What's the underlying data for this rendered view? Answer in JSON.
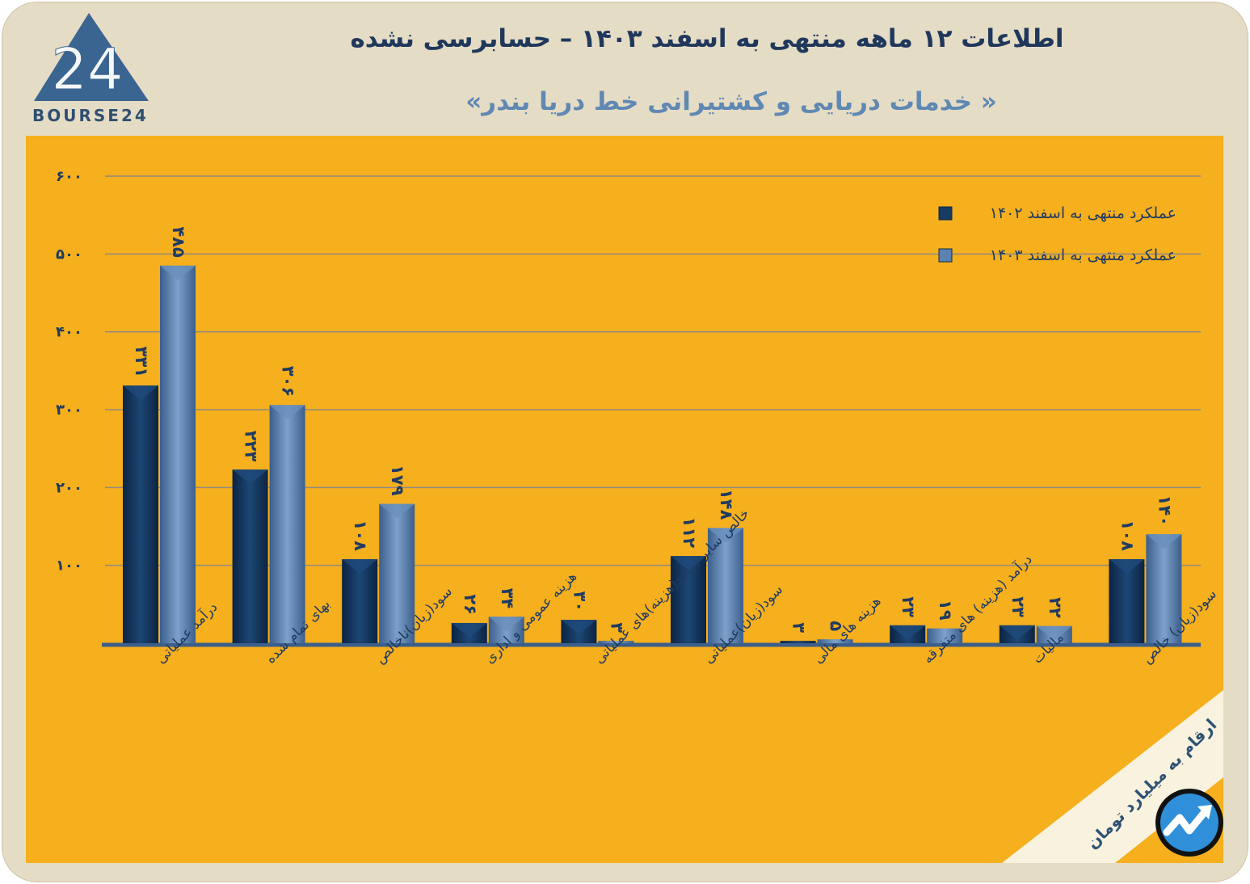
{
  "header": {
    "title": "اطلاعات ۱۲ ماهه منتهی به اسفند ۱۴۰۳ – حسابرسی نشده",
    "subtitle": "« خدمات دریایی و کشتیرانی خط دریا بندر»",
    "logo_text": "BOURSE24",
    "logo_number": "24"
  },
  "colors": {
    "frame": "#e5dcc5",
    "panel": "#f6af1d",
    "series_1402": "#173b63",
    "series_1403": "#5a82b2",
    "title": "#20385c",
    "subtitle": "#5f88b3",
    "gridline": "#8f8a80"
  },
  "badge_icon": "trend-arrow-icon",
  "note": "ارقام به میلیارد تومان",
  "chart_data": {
    "type": "bar",
    "categories": [
      "درآمد عملیاتی",
      "بهای تمام شده",
      "سود(زیان)ناخالص",
      "هزینه عمومی و اداری",
      "خالص سایر درامد(هزینه)های عملیاتی",
      "سود(زیان)عملیاتی",
      "هزینه های مالی",
      "درآمد (هزینه) های متفرقه",
      "مالیات",
      "سود(زیان) خالص"
    ],
    "series": [
      {
        "name": "عملکرد منتهی به اسفند ۱۴۰۲",
        "values": [
          331,
          223,
          108,
          26,
          30,
          112,
          3,
          23,
          23,
          108
        ],
        "labels": [
          "۳۳۱",
          "۲۲۳",
          "۱۰۸",
          "۲۶",
          "۳۰",
          "۱۱۲",
          "۳",
          "۲۳",
          "۲۳",
          "۱۰۸"
        ]
      },
      {
        "name": "عملکرد منتهی به اسفند ۱۴۰۳",
        "values": [
          485,
          306,
          179,
          34,
          3,
          148,
          5,
          19,
          22,
          140
        ],
        "labels": [
          "۴۸۵",
          "۳۰۶",
          "۱۷۹",
          "۳۴",
          "۳",
          "۱۴۸",
          "۵",
          "۱۹",
          "۲۲",
          "۱۴۰"
        ]
      }
    ],
    "yticks": [
      {
        "value": 100,
        "label": "۱۰۰"
      },
      {
        "value": 200,
        "label": "۲۰۰"
      },
      {
        "value": 300,
        "label": "۳۰۰"
      },
      {
        "value": 400,
        "label": "۴۰۰"
      },
      {
        "value": 500,
        "label": "۵۰۰"
      },
      {
        "value": 600,
        "label": "۶۰۰"
      }
    ],
    "ylim": [
      0,
      600
    ],
    "grid": true,
    "legend_position": "top-right"
  }
}
